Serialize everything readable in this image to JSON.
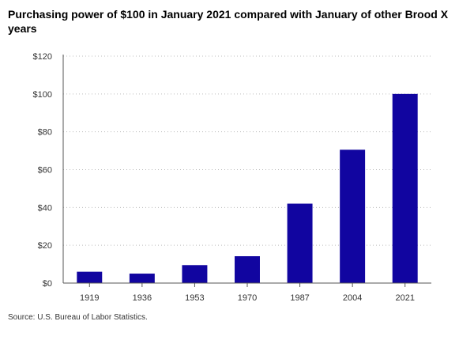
{
  "chart_data": {
    "type": "bar",
    "title": "Purchasing power of $100 in January 2021 compared with January of other Brood X years",
    "categories": [
      "1919",
      "1936",
      "1953",
      "1970",
      "1987",
      "2004",
      "2021"
    ],
    "values": [
      6.0,
      5.0,
      9.5,
      14.2,
      42.0,
      70.5,
      100.0
    ],
    "ylim": [
      0,
      120
    ],
    "yticks": [
      0,
      20,
      40,
      60,
      80,
      100,
      120
    ],
    "ytick_labels": [
      "$0",
      "$20",
      "$40",
      "$60",
      "$80",
      "$100",
      "$120"
    ],
    "xlabel": "",
    "ylabel": "",
    "grid": "horizontal dotted",
    "bar_color": "#1105A0"
  },
  "source": "Source: U.S. Bureau of Labor Statistics."
}
